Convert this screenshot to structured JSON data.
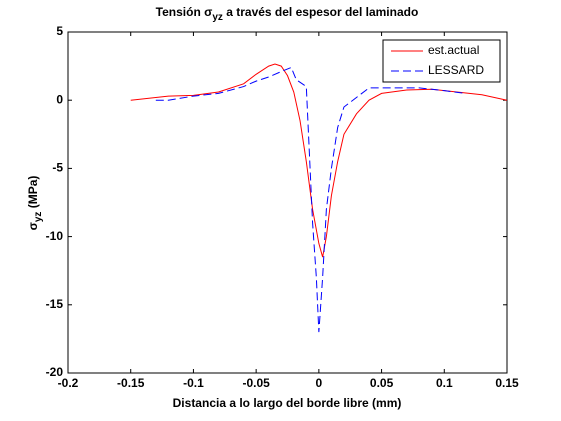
{
  "chart_data": {
    "type": "line",
    "title": {
      "main": "Tensión σ",
      "sub": "yz",
      "rest": " a través del espesor del laminado"
    },
    "xlabel": "Distancia a lo largo del borde libre (mm)",
    "ylabel": {
      "main": "σ",
      "sub": "yz",
      "rest": " (MPa)"
    },
    "xlim": [
      -0.2,
      0.15
    ],
    "ylim": [
      -20,
      5
    ],
    "xticks": [
      -0.2,
      -0.15,
      -0.1,
      -0.05,
      0,
      0.05,
      0.1,
      0.15
    ],
    "yticks": [
      -20,
      -15,
      -10,
      -5,
      0,
      5
    ],
    "grid": false,
    "legend": "top-right",
    "series": [
      {
        "name": "est.actual",
        "color": "#ff0000",
        "dash": false,
        "x": [
          -0.15,
          -0.12,
          -0.1,
          -0.08,
          -0.06,
          -0.05,
          -0.04,
          -0.035,
          -0.03,
          -0.025,
          -0.02,
          -0.015,
          -0.01,
          -0.005,
          0,
          0.003,
          0.006,
          0.01,
          0.015,
          0.02,
          0.03,
          0.04,
          0.05,
          0.07,
          0.09,
          0.11,
          0.13,
          0.15
        ],
        "values": [
          0,
          0.3,
          0.35,
          0.6,
          1.2,
          1.9,
          2.5,
          2.65,
          2.5,
          1.8,
          0.6,
          -1.5,
          -4.5,
          -8,
          -10.5,
          -11.5,
          -10,
          -7,
          -4.5,
          -2.5,
          -1,
          0,
          0.5,
          0.75,
          0.8,
          0.6,
          0.4,
          0
        ]
      },
      {
        "name": "LESSARD",
        "color": "#0000ff",
        "dash": true,
        "x": [
          -0.13,
          -0.12,
          -0.1,
          -0.08,
          -0.06,
          -0.05,
          -0.04,
          -0.03,
          -0.022,
          -0.018,
          -0.01,
          -0.008,
          -0.005,
          -0.002,
          0,
          0.003,
          0.006,
          0.01,
          0.015,
          0.02,
          0.04,
          0.06,
          0.08,
          0.1,
          0.117
        ],
        "values": [
          0,
          0,
          0.3,
          0.5,
          1,
          1.4,
          1.7,
          2.1,
          2.4,
          1.5,
          1,
          -3,
          -9,
          -13,
          -17,
          -13,
          -8,
          -5,
          -2,
          -0.5,
          0.9,
          0.9,
          0.9,
          0.7,
          0.5
        ]
      }
    ]
  }
}
